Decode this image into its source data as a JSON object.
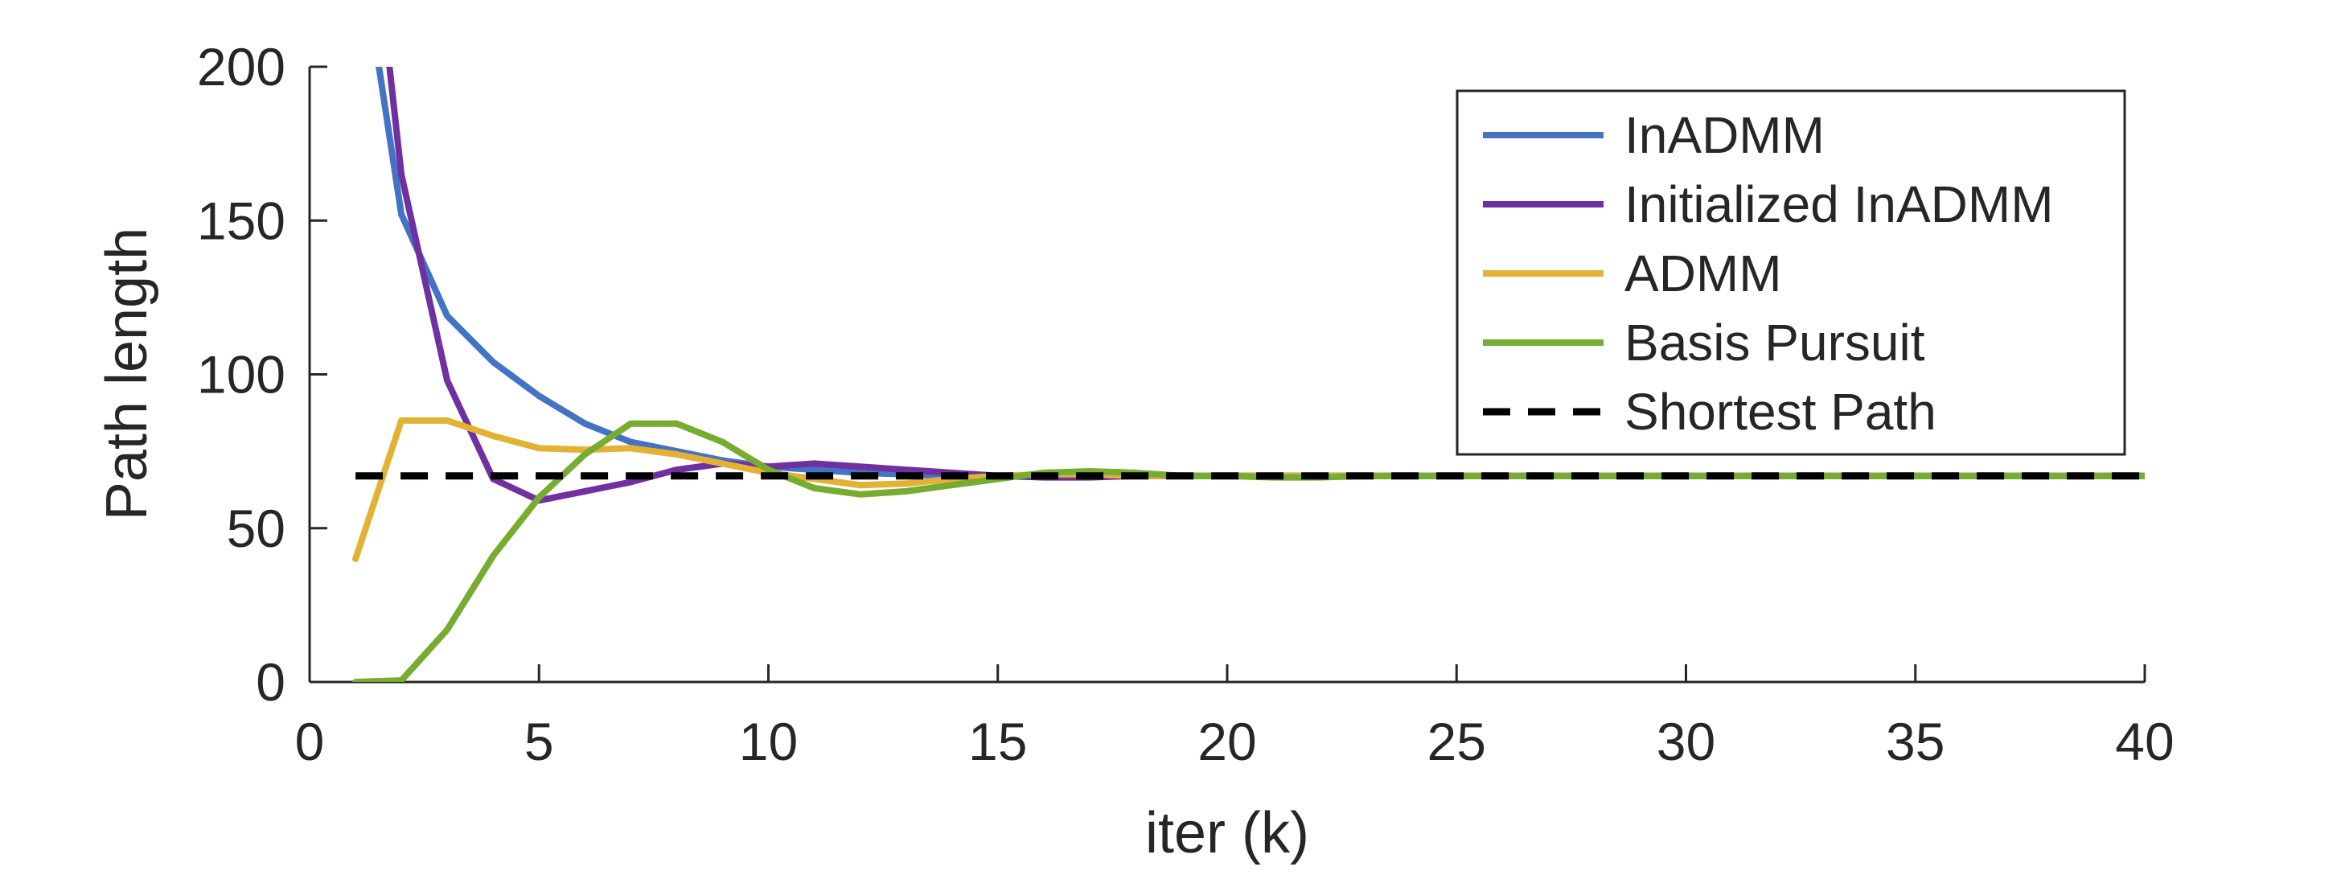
{
  "chart_data": {
    "type": "line",
    "title": "",
    "xlabel": "iter (k)",
    "ylabel": "Path length",
    "xlim": [
      0,
      40
    ],
    "ylim": [
      0,
      200
    ],
    "xticks": [
      0,
      5,
      10,
      15,
      20,
      25,
      30,
      35,
      40
    ],
    "yticks": [
      0,
      50,
      100,
      150,
      200
    ],
    "grid": false,
    "legend_position": "top-right",
    "series": [
      {
        "name": "InADMM",
        "color": "#4472C4",
        "style": "solid",
        "x": [
          1,
          2,
          3,
          4,
          5,
          6,
          7,
          8,
          9,
          10,
          11,
          12,
          13,
          14,
          15,
          16,
          17,
          18,
          19,
          20,
          21,
          22,
          23,
          24,
          25,
          26,
          27,
          28,
          29,
          30,
          31,
          32,
          33,
          34,
          35,
          36,
          37,
          38,
          39,
          40
        ],
        "y": [
          250,
          152,
          119,
          104,
          93,
          84,
          78,
          75,
          72,
          70,
          69,
          68,
          67.5,
          67,
          67,
          67,
          67,
          67,
          67,
          67,
          67,
          67,
          67,
          67,
          67,
          67,
          67,
          67,
          67,
          67,
          67,
          67,
          67,
          67,
          67,
          67,
          67,
          67,
          67,
          67
        ]
      },
      {
        "name": "Initialized InADMM",
        "color": "#7030A0",
        "style": "solid",
        "x": [
          1,
          2,
          3,
          4,
          5,
          6,
          7,
          8,
          9,
          10,
          11,
          12,
          13,
          14,
          15,
          16,
          17,
          18,
          19,
          20,
          21,
          22,
          23,
          24,
          25,
          26,
          27,
          28,
          29,
          30,
          31,
          32,
          33,
          34,
          35,
          36,
          37,
          38,
          39,
          40
        ],
        "y": [
          300,
          165,
          98,
          66,
          59,
          62,
          65,
          69,
          71,
          70,
          71,
          70,
          69,
          68,
          67,
          66.5,
          66.5,
          67,
          67,
          67,
          67,
          67,
          67,
          67,
          67,
          67,
          67,
          67,
          67,
          67,
          67,
          67,
          67,
          67,
          67,
          67,
          67,
          67,
          67,
          67
        ]
      },
      {
        "name": "ADMM",
        "color": "#E3B235",
        "style": "solid",
        "x": [
          1,
          2,
          3,
          4,
          5,
          6,
          7,
          8,
          9,
          10,
          11,
          12,
          13,
          14,
          15,
          16,
          17,
          18,
          19,
          20,
          21,
          22,
          23,
          24,
          25,
          26,
          27,
          28,
          29,
          30,
          31,
          32,
          33,
          34,
          35,
          36,
          37,
          38,
          39,
          40
        ],
        "y": [
          40,
          85,
          85,
          80,
          76,
          75.5,
          76,
          74,
          71,
          68,
          66,
          64,
          64.5,
          66,
          67,
          67.5,
          67.5,
          67,
          67,
          67,
          67,
          67,
          67,
          67,
          67,
          67,
          67,
          67,
          67,
          67,
          67,
          67,
          67,
          67,
          67,
          67,
          67,
          67,
          67,
          67
        ]
      },
      {
        "name": "Basis Pursuit",
        "color": "#77AC30",
        "style": "solid",
        "x": [
          1,
          2,
          3,
          4,
          5,
          6,
          7,
          8,
          9,
          10,
          11,
          12,
          13,
          14,
          15,
          16,
          17,
          18,
          19,
          20,
          21,
          22,
          23,
          24,
          25,
          26,
          27,
          28,
          29,
          30,
          31,
          32,
          33,
          34,
          35,
          36,
          37,
          38,
          39,
          40
        ],
        "y": [
          0,
          0.5,
          17,
          41,
          60,
          74,
          84,
          84,
          78,
          69,
          63,
          61,
          62,
          64,
          66,
          68,
          68.5,
          68,
          67,
          67,
          66.5,
          66.5,
          67,
          67,
          67,
          67,
          67,
          67,
          67,
          67,
          67,
          67,
          67,
          67,
          67,
          67,
          67,
          67,
          67,
          67
        ]
      },
      {
        "name": "Shortest Path",
        "color": "#000000",
        "style": "dashed",
        "x": [
          1,
          40
        ],
        "y": [
          67,
          67
        ]
      }
    ]
  }
}
